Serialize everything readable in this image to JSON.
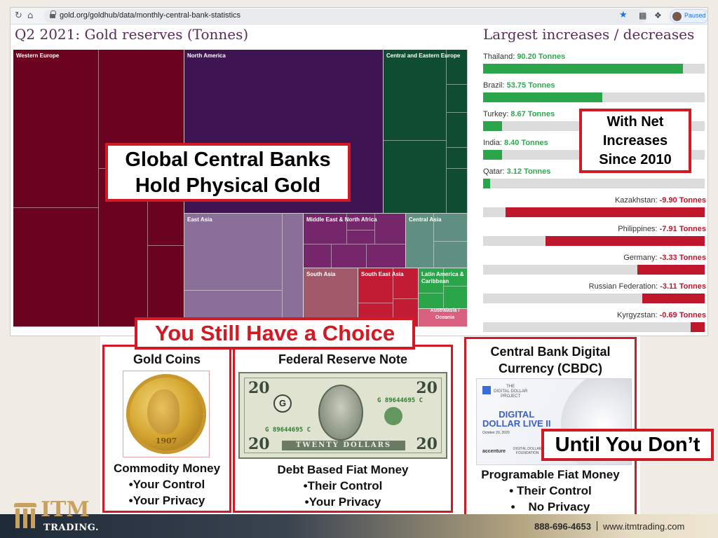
{
  "browser": {
    "url": "gold.org/goldhub/data/monthly-central-bank-statistics",
    "profile_status": "Paused"
  },
  "treemap": {
    "title": "Q2 2021: Gold reserves (Tonnes)",
    "regions": [
      {
        "label": "Western Europe",
        "color": "#6b0320"
      },
      {
        "label": "North America",
        "color": "#3f1453"
      },
      {
        "label": "Central and Eastern Europe",
        "color": "#0f4d33"
      },
      {
        "label": "East Asia",
        "color": "#8a7098"
      },
      {
        "label": "Middle East & North Africa",
        "color": "#76266a"
      },
      {
        "label": "Central Asia",
        "color": "#5e8f80"
      },
      {
        "label": "South Asia",
        "color": "#a2596a"
      },
      {
        "label": "South East Asia",
        "color": "#c21c34"
      },
      {
        "label": "Latin America & Caribbean",
        "color": "#2aa54a"
      },
      {
        "label": "Australasia / Oceania",
        "color": "#d9607e"
      }
    ]
  },
  "changes": {
    "title": "Largest increases / decreases",
    "increases": [
      {
        "country": "Thailand:",
        "value": "90.20 Tonnes",
        "num": 90.2
      },
      {
        "country": "Brazil:",
        "value": "53.75 Tonnes",
        "num": 53.75
      },
      {
        "country": "Turkey:",
        "value": "8.67 Tonnes",
        "num": 8.67
      },
      {
        "country": "India:",
        "value": "8.40 Tonnes",
        "num": 8.4
      },
      {
        "country": "Qatar:",
        "value": "3.12 Tonnes",
        "num": 3.12
      }
    ],
    "decreases": [
      {
        "country": "Kazakhstan:",
        "value": "-9.90 Tonnes",
        "num": -9.9
      },
      {
        "country": "Philippines:",
        "value": "-7.91 Tonnes",
        "num": -7.91
      },
      {
        "country": "Germany:",
        "value": "-3.33 Tonnes",
        "num": -3.33
      },
      {
        "country": "Russian Federation:",
        "value": "-3.11 Tonnes",
        "num": -3.11
      },
      {
        "country": "Kyrgyzstan:",
        "value": "-0.69 Tonnes",
        "num": -0.69
      }
    ]
  },
  "callouts": {
    "main": [
      "Global Central Banks",
      "Hold Physical Gold"
    ],
    "net": [
      "With Net",
      "Increases",
      "Since 2010"
    ],
    "choice": "You Still Have a Choice",
    "until": "Until You Don’t"
  },
  "panels": {
    "gold": {
      "title": "Gold Coins",
      "coin_year": "1907",
      "lines": [
        "Commodity Money",
        "•Your Control",
        "•Your Privacy"
      ]
    },
    "fed": {
      "title": "Federal Reserve Note",
      "note_value": "20",
      "serial": "G 89644695 C",
      "seal_letter": "G",
      "band_text": "TWENTY DOLLARS",
      "lines": [
        "Debt Based Fiat Money",
        "•Their Control",
        "•Your Privacy"
      ]
    },
    "cbdc": {
      "title": [
        "Central Bank Digital",
        "Currency (CBDC)"
      ],
      "image": {
        "project": [
          "THE",
          "DIGITAL DOLLAR",
          "PROJECT"
        ],
        "headline": [
          "DIGITAL",
          "DOLLAR LIVE II"
        ],
        "date": "October 20, 2020",
        "partner": "accenture",
        "foundation": [
          "DIGITAL DOLLAR",
          "FOUNDATION"
        ]
      },
      "lines": [
        "Programable Fiat Money",
        "• Their Control",
        "•    No Privacy"
      ]
    }
  },
  "footer": {
    "brand": "ITM",
    "brand_sub": "TRADING.",
    "phone": "888-696-4653",
    "website": "www.itmtrading.com"
  }
}
